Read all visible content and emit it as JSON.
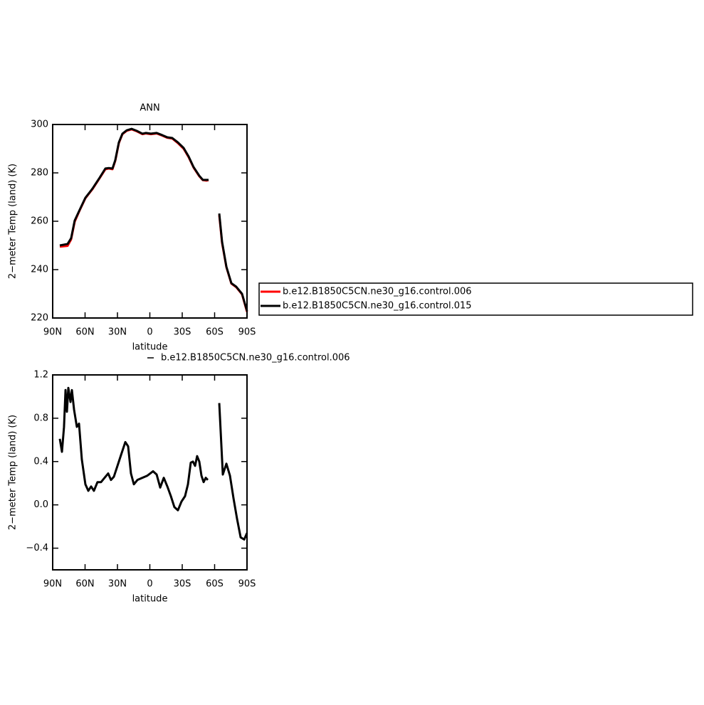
{
  "chart_data": [
    {
      "type": "line",
      "title": "ANN",
      "x_label": "latitude",
      "y_label": "2−meter Temp (land) (K)",
      "x": [
        83.4,
        76.2,
        72.9,
        69.6,
        65,
        59.7,
        53.1,
        46.5,
        41.2,
        38,
        34.6,
        32,
        28.7,
        25.4,
        21.4,
        16.8,
        12.2,
        6.9,
        3.6,
        -1,
        -6.3,
        -11.5,
        -16.2,
        -20.8,
        -26,
        -31.3,
        -35.9,
        -40.5,
        -45.8,
        -49.1,
        -52.4,
        -54.4,
        -59,
        -64.3,
        -66.9,
        -70.9,
        -75.5,
        -80.1,
        -85.4,
        -90
      ],
      "series": [
        {
          "name": "b.e12.B1850C5CN.ne30_g16.control.006",
          "color": "#ff0000",
          "values": [
            249.5,
            249.8,
            252.5,
            259.8,
            264.5,
            269.5,
            273.3,
            277.8,
            281.5,
            281.8,
            281.5,
            285,
            292.3,
            296,
            297.4,
            298,
            297.2,
            296,
            296.3,
            296,
            296.3,
            295.4,
            294.5,
            294.2,
            292.3,
            290,
            286.5,
            282.2,
            278.6,
            277,
            276.8,
            277,
            null,
            262.5,
            251,
            241,
            234.2,
            232.7,
            229.8,
            222.5
          ]
        },
        {
          "name": "b.e12.B1850C5CN.ne30_g16.control.015",
          "color": "#000000",
          "values": [
            250,
            250.6,
            253,
            260.3,
            264.7,
            269.7,
            273.5,
            278,
            281.8,
            282,
            281.8,
            285.3,
            292.6,
            296.2,
            297.6,
            298.2,
            297.4,
            296.2,
            296.5,
            296.2,
            296.5,
            295.6,
            294.7,
            294.4,
            292.6,
            290.3,
            286.8,
            282.4,
            278.8,
            277.1,
            277.1,
            277.1,
            null,
            263.2,
            251.5,
            241.2,
            234.4,
            232.9,
            230,
            222.9
          ]
        }
      ],
      "xlim": [
        90,
        -90
      ],
      "xticks": [
        {
          "value": 90,
          "label": "90N"
        },
        {
          "value": 60,
          "label": "60N"
        },
        {
          "value": 30,
          "label": "30N"
        },
        0,
        {
          "value": -30,
          "label": "30S"
        },
        {
          "value": -60,
          "label": "60S"
        },
        {
          "value": -90,
          "label": "90S"
        }
      ],
      "ylim": [
        220,
        300
      ],
      "yticks": [
        220,
        240,
        260,
        280,
        300
      ],
      "legend": "right"
    },
    {
      "type": "line",
      "x_label": "latitude",
      "y_label": "2−meter Temp (land) (K)",
      "x": [
        83.4,
        81.4,
        79.5,
        78.1,
        76.8,
        75.5,
        73.5,
        72.2,
        70.2,
        67.6,
        65.6,
        63,
        59.7,
        57,
        54.4,
        51.8,
        48.5,
        45.2,
        41.9,
        38.6,
        36,
        33.3,
        30,
        26.7,
        22.7,
        20.1,
        17.5,
        14.8,
        11.5,
        6.9,
        2.3,
        -3,
        -6.3,
        -9.6,
        -12.9,
        -16.2,
        -19.5,
        -22.7,
        -26,
        -29.3,
        -32.6,
        -35.3,
        -37.9,
        -39.9,
        -41.9,
        -43.8,
        -45.8,
        -47.8,
        -49.8,
        -51.8,
        -53.7,
        -59,
        -64.3,
        -67.6,
        -70.9,
        -74.2,
        -77.5,
        -80.8,
        -84.1,
        -87.4,
        -90
      ],
      "series": [
        {
          "name": "b.e12.B1850C5CN.ne30_g16.control.006",
          "color": "#000000",
          "values": [
            0.61,
            0.49,
            0.72,
            1.06,
            0.86,
            1.08,
            0.95,
            1.06,
            0.88,
            0.72,
            0.75,
            0.42,
            0.19,
            0.13,
            0.17,
            0.13,
            0.21,
            0.21,
            0.25,
            0.29,
            0.23,
            0.26,
            0.36,
            0.46,
            0.58,
            0.54,
            0.29,
            0.19,
            0.23,
            0.25,
            0.27,
            0.31,
            0.28,
            0.16,
            0.25,
            0.17,
            0.08,
            -0.02,
            -0.05,
            0.03,
            0.08,
            0.19,
            0.39,
            0.4,
            0.36,
            0.45,
            0.4,
            0.27,
            0.21,
            0.25,
            0.23,
            null,
            0.94,
            0.28,
            0.38,
            0.27,
            0.06,
            -0.13,
            -0.3,
            -0.32,
            -0.26
          ]
        }
      ],
      "xlim": [
        90,
        -90
      ],
      "xticks": [
        {
          "value": 90,
          "label": "90N"
        },
        {
          "value": 60,
          "label": "60N"
        },
        {
          "value": 30,
          "label": "30N"
        },
        0,
        {
          "value": -30,
          "label": "30S"
        },
        {
          "value": -60,
          "label": "60S"
        },
        {
          "value": -90,
          "label": "90S"
        }
      ],
      "ylim": [
        -0.6,
        1.2
      ],
      "yticks": [
        {
          "value": -0.4,
          "label": "−0.4"
        },
        {
          "value": 0,
          "label": "0.0"
        },
        0.4,
        0.8,
        1.2
      ],
      "legend": "top"
    }
  ]
}
